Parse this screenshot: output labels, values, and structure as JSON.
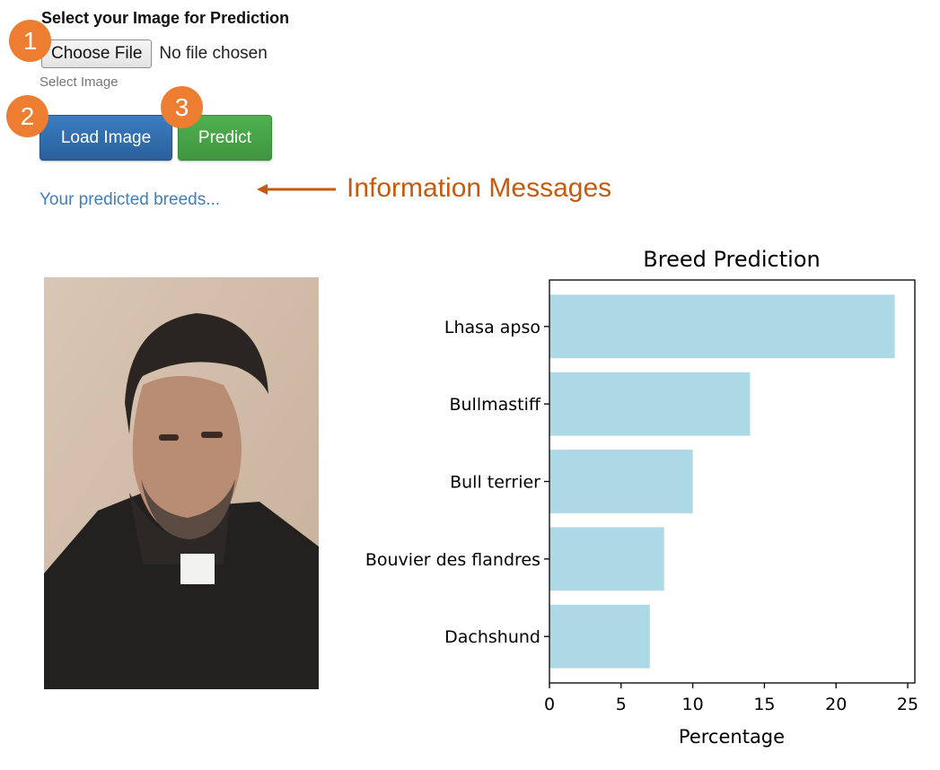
{
  "form": {
    "title": "Select your Image for Prediction",
    "choose_file_label": "Choose File",
    "file_status": "No file chosen",
    "hint": "Select Image"
  },
  "buttons": {
    "load_label": "Load Image",
    "predict_label": "Predict"
  },
  "badges": [
    "1",
    "2",
    "3"
  ],
  "info_message": "Your predicted breeds...",
  "annotation": {
    "text": "Information Messages",
    "color": "#c55a11"
  },
  "colors": {
    "badge": "#ed7d31",
    "load_button": "#2f6bad",
    "predict_button": "#47a447",
    "info_text": "#3f7fbf",
    "bar": "#add8e6"
  },
  "photo": {
    "icon": "uploaded-photo-person",
    "description_hidden": true
  },
  "chart_data": {
    "type": "bar",
    "orientation": "horizontal",
    "title": "Breed Prediction",
    "xlabel": "Percentage",
    "ylabel": "",
    "categories": [
      "Lhasa apso",
      "Bullmastiff",
      "Bull terrier",
      "Bouvier des flandres",
      "Dachshund"
    ],
    "values": [
      24.1,
      14.0,
      10.0,
      8.0,
      7.0
    ],
    "xlim": [
      0,
      25.5
    ],
    "xticks": [
      0,
      5,
      10,
      15,
      20,
      25
    ],
    "grid": false,
    "bar_color": "#add8e6"
  }
}
